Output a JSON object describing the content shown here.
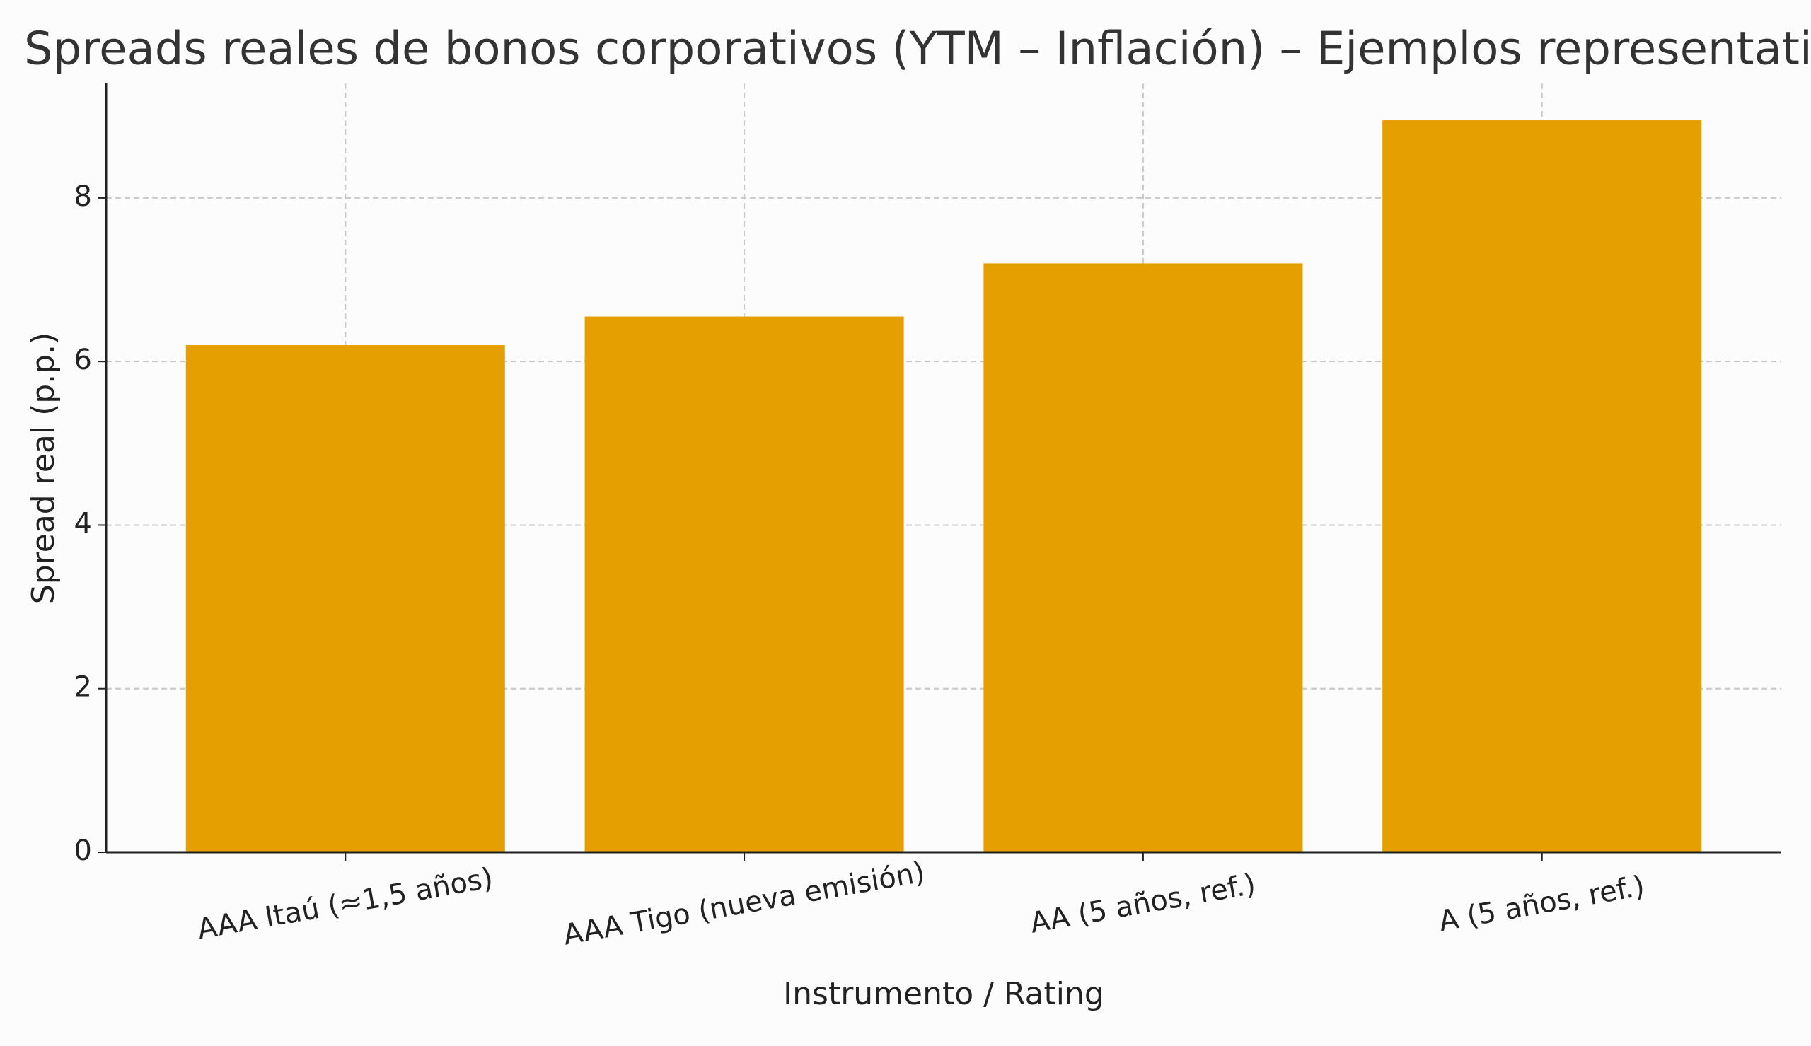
{
  "chart_data": {
    "type": "bar",
    "title": "Spreads reales de bonos corporativos (YTM – Inflación) – Ejemplos representativos",
    "x_label": "Instrumento / Rating",
    "y_label": "Spread real (p.p.)",
    "categories": [
      "AAA Itaú (≈1,5 años)",
      "AAA Tigo (nueva emisión)",
      "AA (5 años, ref.)",
      "A (5 años, ref.)"
    ],
    "values": [
      6.2,
      6.55,
      7.2,
      8.95
    ],
    "color": "#e69f00",
    "ylim": [
      0,
      9.4
    ],
    "yticks": [
      0,
      2,
      4,
      6,
      8
    ],
    "grid": true
  }
}
